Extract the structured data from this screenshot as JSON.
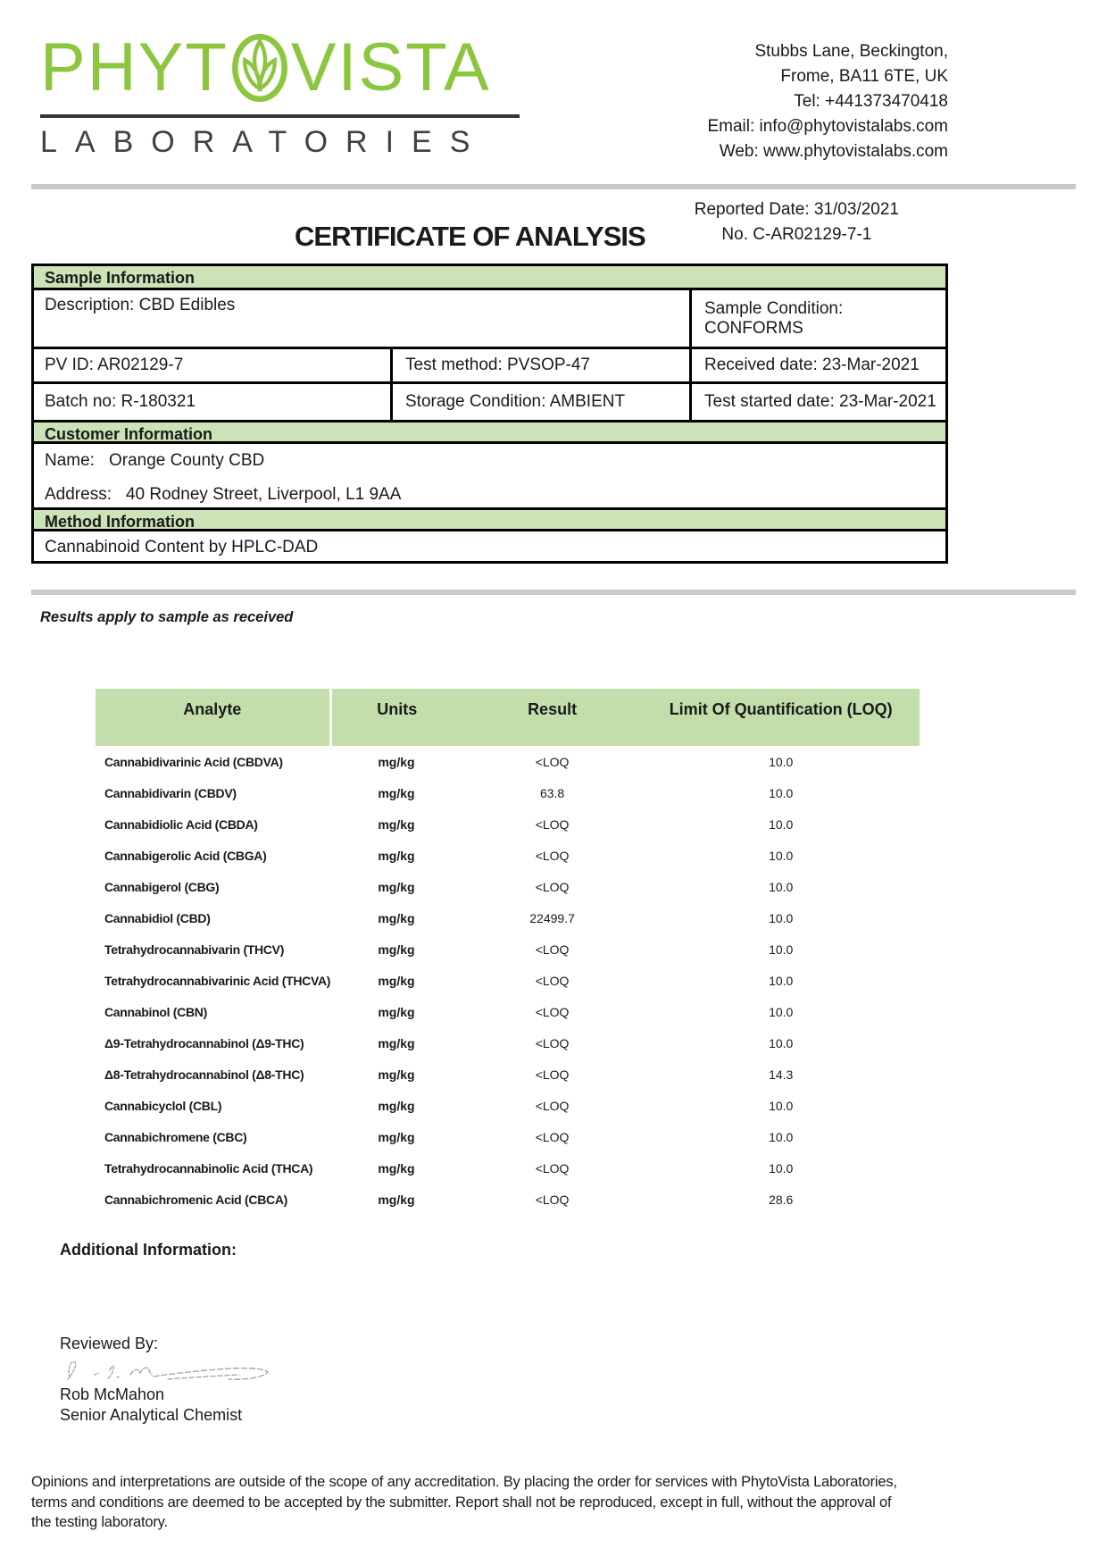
{
  "logo": {
    "word_part1": "PHYT",
    "word_part2": "VISTA",
    "subtitle": "LABORATORIES",
    "leaf_icon": "leaf-in-oval",
    "brand_green": "#8CC63F",
    "subtitle_color": "#414042"
  },
  "contact": {
    "lines": [
      "Stubbs Lane, Beckington,",
      "Frome, BA11 6TE, UK",
      "Tel: +441373470418",
      "Email: info@phytovistalabs.com",
      "Web: www.phytovistalabs.com"
    ]
  },
  "report_header": {
    "title": "CERTIFICATE OF ANALYSIS",
    "reported_date": "Reported Date: 31/03/2021",
    "report_no": "No. C-AR02129-7-1"
  },
  "sample_information": {
    "heading": "Sample Information",
    "description": "Description: CBD Edibles",
    "sample_condition": "Sample Condition: CONFORMS",
    "pv_id": "PV ID: AR02129-7",
    "test_method": "Test method: PVSOP-47",
    "received_date": "Received date: 23-Mar-2021",
    "batch_no": "Batch no: R-180321",
    "storage_condition": "Storage Condition: AMBIENT",
    "test_started_date": "Test started date: 23-Mar-2021"
  },
  "customer_information": {
    "heading": "Customer Information",
    "name_label": "Name:",
    "name": "Orange County CBD",
    "address_label": "Address:",
    "address": "40 Rodney Street, Liverpool, L1 9AA"
  },
  "method_information": {
    "heading": "Method Information",
    "method": "Cannabinoid Content by HPLC-DAD"
  },
  "results_note": "Results apply to sample as received",
  "results_table": {
    "headers": [
      "Analyte",
      "Units",
      "Result",
      "Limit Of Quantification (LOQ)"
    ],
    "rows": [
      {
        "analyte": "Cannabidivarinic Acid (CBDVA)",
        "units": "mg/kg",
        "result": "<LOQ",
        "loq": "10.0"
      },
      {
        "analyte": "Cannabidivarin (CBDV)",
        "units": "mg/kg",
        "result": "63.8",
        "loq": "10.0"
      },
      {
        "analyte": "Cannabidiolic Acid (CBDA)",
        "units": "mg/kg",
        "result": "<LOQ",
        "loq": "10.0"
      },
      {
        "analyte": "Cannabigerolic Acid (CBGA)",
        "units": "mg/kg",
        "result": "<LOQ",
        "loq": "10.0"
      },
      {
        "analyte": "Cannabigerol (CBG)",
        "units": "mg/kg",
        "result": "<LOQ",
        "loq": "10.0"
      },
      {
        "analyte": "Cannabidiol (CBD)",
        "units": "mg/kg",
        "result": "22499.7",
        "loq": "10.0"
      },
      {
        "analyte": "Tetrahydrocannabivarin (THCV)",
        "units": "mg/kg",
        "result": "<LOQ",
        "loq": "10.0"
      },
      {
        "analyte": "Tetrahydrocannabivarinic Acid (THCVA)",
        "units": "mg/kg",
        "result": "<LOQ",
        "loq": "10.0"
      },
      {
        "analyte": "Cannabinol (CBN)",
        "units": "mg/kg",
        "result": "<LOQ",
        "loq": "10.0"
      },
      {
        "analyte": "Δ9-Tetrahydrocannabinol (Δ9-THC)",
        "units": "mg/kg",
        "result": "<LOQ",
        "loq": "10.0"
      },
      {
        "analyte": "Δ8-Tetrahydrocannabinol (Δ8-THC)",
        "units": "mg/kg",
        "result": "<LOQ",
        "loq": "14.3"
      },
      {
        "analyte": "Cannabicyclol (CBL)",
        "units": "mg/kg",
        "result": "<LOQ",
        "loq": "10.0"
      },
      {
        "analyte": "Cannabichromene (CBC)",
        "units": "mg/kg",
        "result": "<LOQ",
        "loq": "10.0"
      },
      {
        "analyte": "Tetrahydrocannabinolic Acid (THCA)",
        "units": "mg/kg",
        "result": "<LOQ",
        "loq": "10.0"
      },
      {
        "analyte": "Cannabichromenic Acid (CBCA)",
        "units": "mg/kg",
        "result": "<LOQ",
        "loq": "28.6"
      }
    ]
  },
  "additional_information_label": "Additional Information:",
  "signature": {
    "reviewed_by_label": "Reviewed By:",
    "name": "Rob McMahon",
    "title": "Senior Analytical Chemist"
  },
  "footer_lines": [
    "Opinions and interpretations are outside of the scope of any accreditation. By placing the order for services with PhytoVista Laboratories,",
    "terms and conditions are deemed to be accepted by the submitter. Report shall not be reproduced, except in full, without the approval of",
    "the testing laboratory."
  ],
  "colors": {
    "brand_green": "#8CC63F",
    "section_bar_green": "#cbe3b7",
    "table_header_green": "#c3deab",
    "divider_gray": "#c9c9c9"
  }
}
